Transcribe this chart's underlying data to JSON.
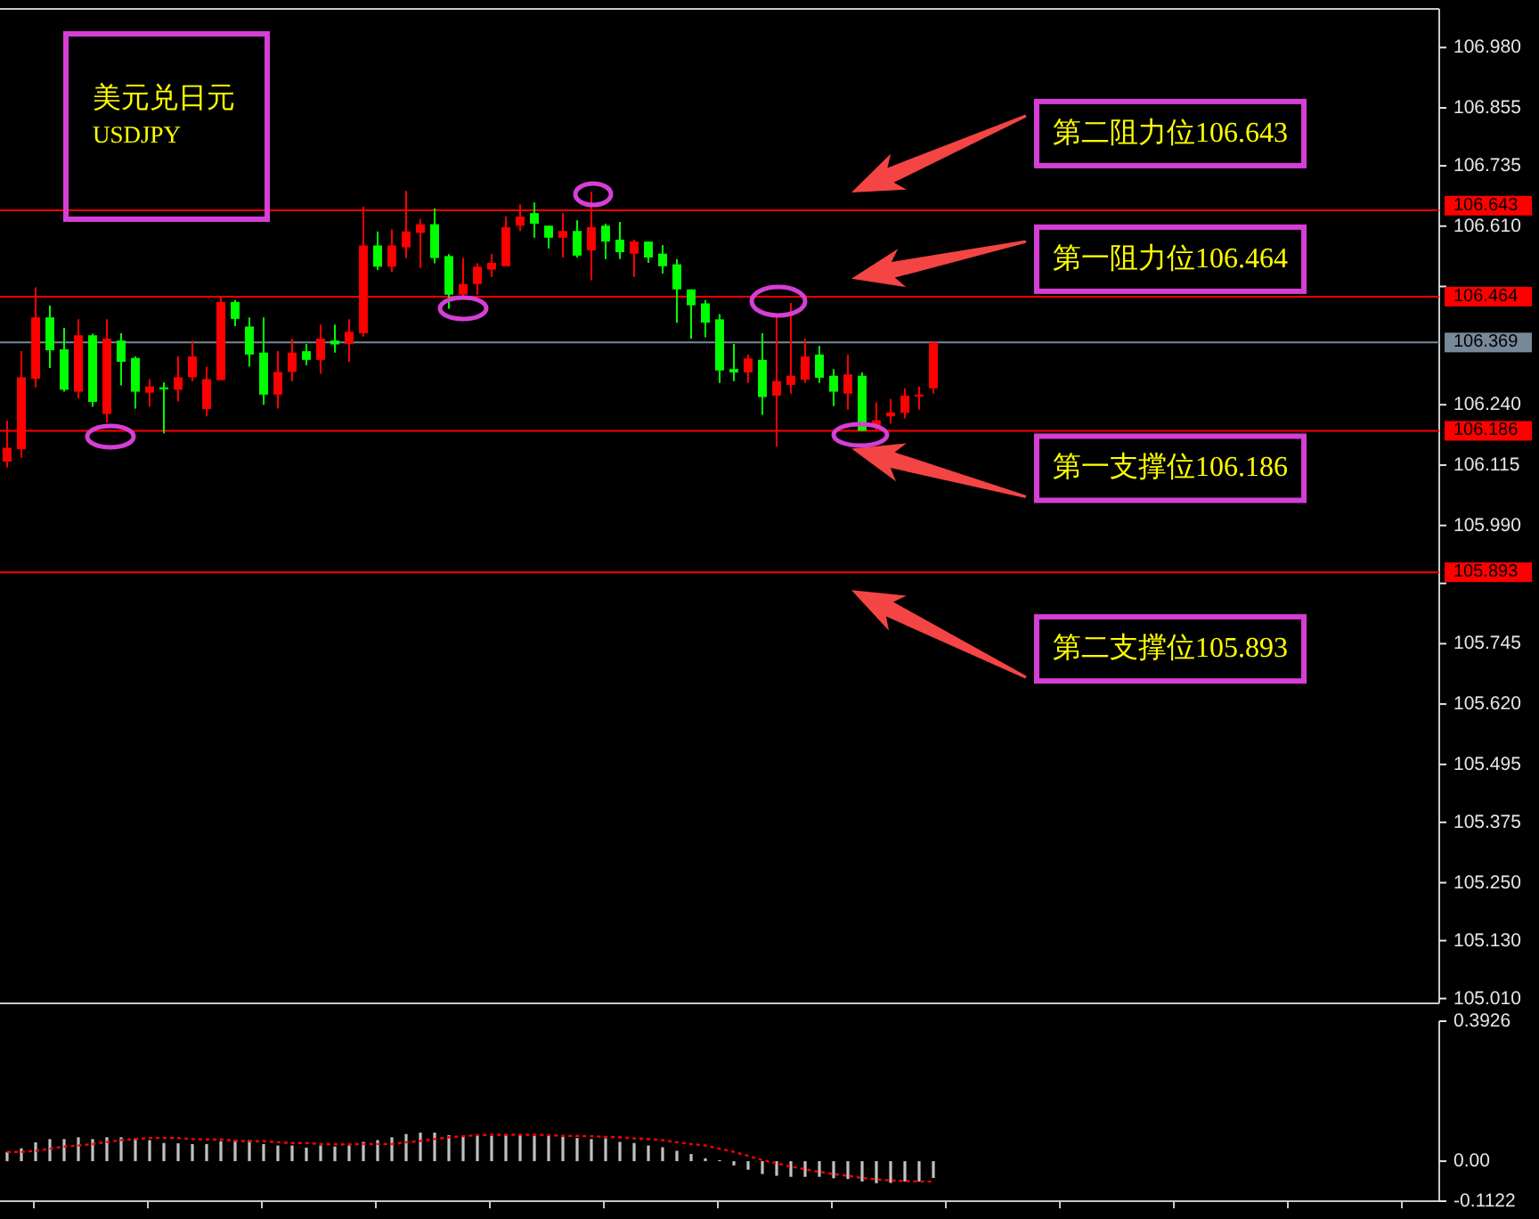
{
  "chart_data": [
    {
      "type": "candlestick",
      "title": "美元兑日元",
      "subtitle": "USDJPY",
      "categories": [
        null,
        null,
        null,
        null,
        null,
        null,
        null,
        null,
        null,
        null,
        null,
        null,
        null,
        null,
        null,
        null,
        null,
        null,
        null,
        null,
        null,
        null,
        null,
        null,
        null,
        null,
        null,
        null,
        null,
        null,
        null,
        null,
        null,
        null,
        null,
        null,
        null,
        null,
        null,
        null,
        null,
        null,
        null,
        null,
        null,
        null,
        null,
        null,
        null,
        null,
        null,
        null,
        null,
        null,
        null,
        null,
        null,
        null,
        null,
        null,
        null,
        null,
        null,
        null,
        null,
        null,
        null,
        null,
        null,
        null,
        null,
        null,
        null,
        null,
        null,
        null,
        null,
        null,
        null,
        null,
        null,
        null,
        null,
        null,
        null,
        null,
        null,
        null,
        null,
        null,
        null,
        null,
        null,
        null,
        null,
        null,
        null,
        null,
        null,
        null,
        null
      ],
      "ohlc": [
        [
          106.122,
          106.207,
          106.11,
          106.151
        ],
        [
          106.148,
          106.351,
          106.13,
          106.297
        ],
        [
          106.294,
          106.483,
          106.276,
          106.421
        ],
        [
          106.421,
          106.446,
          106.316,
          106.353
        ],
        [
          106.355,
          106.399,
          106.267,
          106.271
        ],
        [
          106.267,
          106.417,
          106.253,
          106.384
        ],
        [
          106.384,
          106.387,
          106.236,
          106.246
        ],
        [
          106.221,
          106.417,
          106.203,
          106.377
        ],
        [
          106.373,
          106.388,
          106.28,
          106.329
        ],
        [
          106.337,
          106.34,
          106.232,
          106.267
        ],
        [
          106.265,
          106.293,
          106.236,
          106.278
        ],
        [
          106.276,
          106.286,
          106.181,
          106.272
        ],
        [
          106.271,
          106.34,
          106.247,
          106.297
        ],
        [
          106.297,
          106.373,
          106.289,
          106.34
        ],
        [
          106.231,
          106.319,
          106.216,
          106.293
        ],
        [
          106.291,
          106.462,
          106.291,
          106.453
        ],
        [
          106.453,
          106.457,
          106.403,
          106.418
        ],
        [
          106.402,
          106.421,
          106.319,
          106.344
        ],
        [
          106.348,
          106.421,
          106.24,
          106.261
        ],
        [
          106.261,
          106.351,
          106.232,
          106.308
        ],
        [
          106.308,
          106.377,
          106.289,
          106.348
        ],
        [
          106.351,
          106.366,
          106.322,
          106.333
        ],
        [
          106.333,
          106.406,
          106.304,
          106.377
        ],
        [
          106.373,
          106.406,
          106.348,
          106.365
        ],
        [
          106.366,
          106.417,
          106.329,
          106.391
        ],
        [
          106.388,
          106.65,
          106.381,
          106.57
        ],
        [
          106.57,
          106.599,
          106.519,
          106.526
        ],
        [
          106.526,
          106.603,
          106.515,
          106.57
        ],
        [
          106.566,
          106.683,
          106.544,
          106.599
        ],
        [
          106.596,
          106.625,
          106.523,
          106.614
        ],
        [
          106.614,
          106.647,
          106.533,
          106.544
        ],
        [
          106.548,
          106.552,
          106.439,
          106.468
        ],
        [
          106.468,
          106.544,
          106.461,
          106.49
        ],
        [
          106.49,
          106.533,
          106.468,
          106.526
        ],
        [
          106.52,
          106.553,
          106.505,
          106.534
        ],
        [
          106.527,
          106.63,
          106.527,
          106.608
        ],
        [
          106.611,
          106.655,
          106.6,
          106.63
        ],
        [
          106.637,
          106.659,
          106.586,
          106.615
        ],
        [
          106.611,
          106.611,
          106.564,
          106.586
        ],
        [
          106.586,
          106.637,
          106.545,
          106.6
        ],
        [
          106.6,
          106.622,
          106.545,
          106.549
        ],
        [
          106.56,
          106.681,
          106.498,
          106.608
        ],
        [
          106.611,
          106.615,
          106.542,
          106.578
        ],
        [
          106.582,
          106.619,
          106.542,
          106.556
        ],
        [
          106.553,
          106.582,
          106.505,
          106.578
        ],
        [
          106.578,
          106.578,
          106.534,
          106.545
        ],
        [
          106.553,
          106.571,
          106.512,
          106.527
        ],
        [
          106.531,
          106.542,
          106.41,
          106.479
        ],
        [
          106.479,
          106.479,
          106.377,
          106.446
        ],
        [
          106.45,
          106.457,
          106.38,
          106.41
        ],
        [
          106.417,
          106.428,
          106.285,
          106.311
        ],
        [
          106.314,
          106.366,
          106.289,
          106.307
        ],
        [
          106.307,
          106.344,
          106.285,
          106.336
        ],
        [
          106.333,
          106.388,
          106.219,
          106.256
        ],
        [
          106.259,
          106.427,
          106.153,
          106.289
        ],
        [
          106.281,
          106.451,
          106.263,
          106.3
        ],
        [
          106.292,
          106.377,
          106.285,
          106.34
        ],
        [
          106.344,
          106.362,
          106.285,
          106.296
        ],
        [
          106.3,
          106.314,
          106.237,
          106.267
        ],
        [
          106.263,
          106.344,
          106.23,
          106.303
        ],
        [
          106.3,
          106.307,
          106.186,
          106.186
        ],
        [
          106.197,
          106.245,
          106.186,
          106.208
        ],
        [
          106.216,
          106.252,
          106.201,
          106.224
        ],
        [
          106.223,
          106.274,
          106.212,
          106.259
        ],
        [
          106.257,
          106.278,
          106.23,
          106.261
        ],
        [
          106.274,
          106.369,
          106.263,
          106.369
        ],
        null,
        null,
        null,
        null,
        null,
        null,
        null,
        null,
        null,
        null,
        null,
        null,
        null,
        null,
        null,
        null,
        null,
        null,
        null,
        null,
        null,
        null,
        null,
        null,
        null,
        null,
        null,
        null,
        null,
        null,
        null,
        null,
        null,
        null,
        null
      ],
      "colors": [
        "#ff0000",
        "#ff0000",
        "#ff0000",
        "#00ff00",
        "#00ff00",
        "#ff0000",
        "#00ff00",
        "#ff0000",
        "#00ff00",
        "#00ff00",
        "#ff0000",
        "#00ff00",
        "#ff0000",
        "#ff0000",
        "#ff0000",
        "#ff0000",
        "#00ff00",
        "#00ff00",
        "#00ff00",
        "#ff0000",
        "#ff0000",
        "#00ff00",
        "#ff0000",
        "#00ff00",
        "#ff0000",
        "#ff0000",
        "#00ff00",
        "#ff0000",
        "#ff0000",
        "#ff0000",
        "#00ff00",
        "#00ff00",
        "#ff0000",
        "#ff0000",
        "#ff0000",
        "#ff0000",
        "#ff0000",
        "#00ff00",
        "#00ff00",
        "#ff0000",
        "#00ff00",
        "#ff0000",
        "#00ff00",
        "#00ff00",
        "#ff0000",
        "#00ff00",
        "#00ff00",
        "#00ff00",
        "#00ff00",
        "#00ff00",
        "#00ff00",
        "#00ff00",
        "#ff0000",
        "#00ff00",
        "#ff0000",
        "#ff0000",
        "#ff0000",
        "#00ff00",
        "#00ff00",
        "#ff0000",
        "#00ff00",
        "#ff0000",
        "#ff0000",
        "#ff0000",
        "#ff0000",
        "#ff0000",
        null,
        null,
        null,
        null,
        null,
        null,
        null,
        null,
        null,
        null,
        null,
        null,
        null,
        null,
        null,
        null,
        null,
        null,
        null,
        null,
        null,
        null,
        null,
        null,
        null,
        null,
        null,
        null,
        null,
        null,
        null,
        null,
        null,
        null,
        null
      ],
      "ylim": [
        105.0,
        107.06
      ],
      "yticks": [
        {
          "value": 105.01,
          "label": "105.010"
        },
        {
          "value": 105.13,
          "label": "105.130"
        },
        {
          "value": 105.25,
          "label": "105.250"
        },
        105.375,
        105.495,
        {
          "value": 105.62,
          "label": "105.620"
        },
        105.745,
        {
          "value": 105.87,
          "label": null
        },
        {
          "value": 105.99,
          "label": "105.990"
        },
        106.115,
        {
          "value": 106.24,
          "label": "106.240"
        },
        {
          "value": 106.485,
          "label": null
        },
        {
          "value": 106.61,
          "label": "106.610"
        },
        106.735,
        106.855,
        {
          "value": 106.98,
          "label": "106.980"
        }
      ],
      "ref_lines": [
        {
          "axis": "y",
          "value": 106.643,
          "label": "106.643",
          "color": "#ff0000"
        },
        {
          "axis": "y",
          "value": 106.464,
          "label": "106.464",
          "color": "#ff0000"
        },
        {
          "axis": "y",
          "value": 106.369,
          "label": "106.369",
          "color": "#778899"
        },
        {
          "axis": "y",
          "value": 106.186,
          "label": "106.186",
          "color": "#ff0000"
        },
        {
          "axis": "y",
          "value": 105.893,
          "label": "105.893",
          "color": "#ff0000"
        }
      ],
      "annotations": [
        {
          "text": "第二阻力位106.643",
          "y": 106.643
        },
        {
          "text": "第一阻力位106.464",
          "y": 106.464
        },
        {
          "text": "第一支撑位106.186",
          "y": 106.186
        },
        {
          "text": "第二支撑位105.893",
          "y": 105.893
        }
      ]
    },
    {
      "type": "bar",
      "categories": [
        null,
        null,
        null,
        null,
        null,
        null,
        null,
        null,
        null,
        null,
        null,
        null,
        null,
        null,
        null,
        null,
        null,
        null,
        null,
        null,
        null,
        null,
        null,
        null,
        null,
        null,
        null,
        null,
        null,
        null,
        null,
        null,
        null,
        null,
        null,
        null,
        null,
        null,
        null,
        null,
        null,
        null,
        null,
        null,
        null,
        null,
        null,
        null,
        null,
        null,
        null,
        null,
        null,
        null,
        null,
        null,
        null,
        null,
        null,
        null,
        null,
        null,
        null,
        null,
        null,
        null,
        null,
        null,
        null,
        null,
        null,
        null,
        null,
        null,
        null,
        null,
        null,
        null,
        null,
        null,
        null,
        null,
        null,
        null,
        null,
        null,
        null,
        null,
        null,
        null,
        null,
        null,
        null,
        null,
        null,
        null,
        null,
        null,
        null,
        null,
        null
      ],
      "series": [
        {
          "type": "bar",
          "color": "#c0c0c0",
          "values": [
            0.026,
            0.036,
            0.053,
            0.062,
            0.062,
            0.067,
            0.062,
            0.067,
            0.067,
            0.064,
            0.059,
            0.051,
            0.05,
            0.048,
            0.048,
            0.056,
            0.059,
            0.059,
            0.048,
            0.044,
            0.044,
            0.038,
            0.044,
            0.041,
            0.044,
            0.054,
            0.059,
            0.067,
            0.076,
            0.08,
            0.08,
            0.073,
            0.071,
            0.071,
            0.071,
            0.074,
            0.073,
            0.071,
            0.071,
            0.068,
            0.065,
            0.062,
            0.064,
            0.054,
            0.051,
            0.044,
            0.039,
            0.029,
            0.02,
            0.008,
            0.003,
            -0.012,
            -0.024,
            -0.036,
            -0.041,
            -0.044,
            -0.044,
            -0.044,
            -0.048,
            -0.05,
            -0.057,
            -0.062,
            -0.061,
            -0.057,
            -0.057,
            -0.047,
            null,
            null,
            null,
            null,
            null,
            null,
            null,
            null,
            null,
            null,
            null,
            null,
            null,
            null,
            null,
            null,
            null,
            null,
            null,
            null,
            null,
            null,
            null,
            null,
            null,
            null,
            null,
            null,
            null,
            null,
            null,
            null,
            null,
            null,
            null
          ]
        },
        {
          "type": "line",
          "color": "#ff0000",
          "line_style": "dotted",
          "values": [
            0.026,
            0.026,
            0.029,
            0.035,
            0.041,
            0.044,
            0.048,
            0.054,
            0.059,
            0.062,
            0.065,
            0.065,
            0.065,
            0.062,
            0.061,
            0.061,
            0.057,
            0.056,
            0.056,
            0.053,
            0.051,
            0.051,
            0.048,
            0.047,
            0.047,
            0.048,
            0.048,
            0.048,
            0.053,
            0.057,
            0.062,
            0.067,
            0.07,
            0.073,
            0.074,
            0.074,
            0.074,
            0.074,
            0.073,
            0.071,
            0.071,
            0.07,
            0.068,
            0.067,
            0.064,
            0.062,
            0.059,
            0.053,
            0.048,
            0.044,
            0.035,
            0.026,
            0.015,
            0.003,
            -0.006,
            -0.015,
            -0.023,
            -0.03,
            -0.036,
            -0.041,
            -0.047,
            -0.051,
            -0.054,
            -0.056,
            -0.057,
            -0.057,
            null,
            null,
            null,
            null,
            null,
            null,
            null,
            null,
            null,
            null,
            null,
            null,
            null,
            null,
            null,
            null,
            null,
            null,
            null,
            null,
            null,
            null,
            null,
            null,
            null,
            null,
            null,
            null,
            null,
            null,
            null,
            null,
            null,
            null,
            null
          ]
        }
      ],
      "ylim": [
        -0.1122,
        0.3926
      ],
      "yticks": [
        0.3926,
        {
          "value": 0,
          "label": "0.00"
        },
        -0.1122
      ]
    }
  ]
}
